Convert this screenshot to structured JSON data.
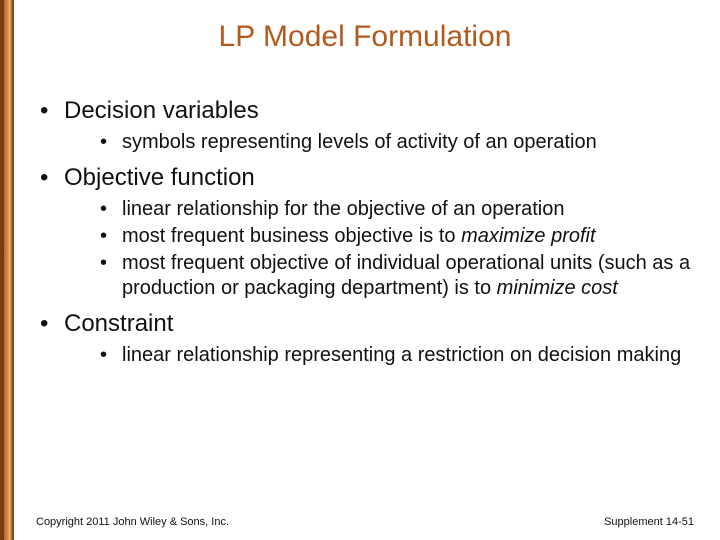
{
  "title": "LP Model Formulation",
  "colors": {
    "title_color": "#b25a1e",
    "text_color": "#111111",
    "background": "#ffffff",
    "border_gradient": [
      "#7a3a0f",
      "#b56b2e",
      "#d48a4a",
      "#e8b87a",
      "#9a5a28",
      "#7a3a0f"
    ]
  },
  "typography": {
    "title_fontsize": 30,
    "top_bullet_fontsize": 24,
    "sub_bullet_fontsize": 20,
    "footer_fontsize": 11,
    "font_family": "Arial"
  },
  "bullets": {
    "b1": {
      "label": "Decision variables",
      "sub": {
        "s1": "symbols representing levels of activity of an operation"
      }
    },
    "b2": {
      "label": "Objective function",
      "sub": {
        "s1": "linear relationship for the objective of an operation",
        "s2_pre": "most frequent business objective is to ",
        "s2_em": "maximize profit",
        "s3_pre": "most frequent objective of individual operational units (such as a production or packaging department) is to ",
        "s3_em": "minimize cost"
      }
    },
    "b3": {
      "label": "Constraint",
      "sub": {
        "s1": "linear relationship representing a restriction on decision making"
      }
    }
  },
  "footer": {
    "left": "Copyright 2011 John Wiley & Sons, Inc.",
    "right": "Supplement 14-51"
  }
}
